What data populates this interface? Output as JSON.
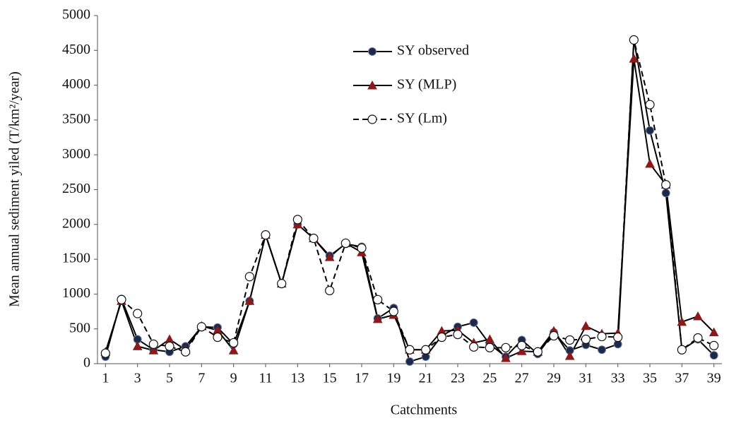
{
  "chart_data": {
    "type": "line",
    "x_label": "Catchments",
    "y_label": "Mean annual sediment yiled (T/km²/year)",
    "x": [
      1,
      2,
      3,
      4,
      5,
      6,
      7,
      8,
      9,
      10,
      11,
      12,
      13,
      14,
      15,
      16,
      17,
      18,
      19,
      20,
      21,
      22,
      23,
      24,
      25,
      26,
      27,
      28,
      29,
      30,
      31,
      32,
      33,
      34,
      35,
      36,
      37,
      38,
      39
    ],
    "xlim": [
      0.5,
      39.5
    ],
    "xticks": [
      1,
      3,
      5,
      7,
      9,
      11,
      13,
      15,
      17,
      19,
      21,
      23,
      25,
      27,
      29,
      31,
      33,
      35,
      37,
      39
    ],
    "ylim": [
      0,
      5000
    ],
    "yticks": [
      0,
      500,
      1000,
      1500,
      2000,
      2500,
      3000,
      3500,
      4000,
      4500,
      5000
    ],
    "grid": false,
    "legend": "top-center",
    "series": [
      {
        "name": "SY observed",
        "color": "#1c2a4a",
        "marker": "circle",
        "line_style": "solid",
        "values": [
          100,
          930,
          350,
          200,
          170,
          250,
          530,
          520,
          280,
          900,
          1850,
          1150,
          2000,
          1800,
          1550,
          1720,
          1680,
          650,
          800,
          30,
          100,
          400,
          530,
          590,
          280,
          100,
          340,
          140,
          450,
          190,
          270,
          200,
          280,
          4650,
          3350,
          2450,
          200,
          350,
          120
        ]
      },
      {
        "name": "SY (MLP)",
        "color": "#8b1a1a",
        "marker": "triangle",
        "line_style": "solid",
        "values": [
          170,
          900,
          250,
          190,
          350,
          200,
          540,
          480,
          190,
          900,
          1850,
          1150,
          2000,
          1800,
          1530,
          1730,
          1600,
          640,
          700,
          200,
          200,
          470,
          480,
          300,
          350,
          80,
          180,
          170,
          470,
          110,
          540,
          430,
          440,
          4380,
          2870,
          2570,
          600,
          680,
          450
        ]
      },
      {
        "name": "SY (Lm)",
        "color": "#111111",
        "marker": "open-circle",
        "line_style": "dashed",
        "values": [
          150,
          920,
          720,
          280,
          250,
          170,
          530,
          380,
          300,
          1250,
          1850,
          1150,
          2070,
          1800,
          1050,
          1730,
          1660,
          920,
          750,
          200,
          200,
          380,
          420,
          240,
          230,
          230,
          260,
          170,
          400,
          340,
          350,
          390,
          380,
          4650,
          3720,
          2570,
          200,
          370,
          260
        ]
      }
    ]
  }
}
